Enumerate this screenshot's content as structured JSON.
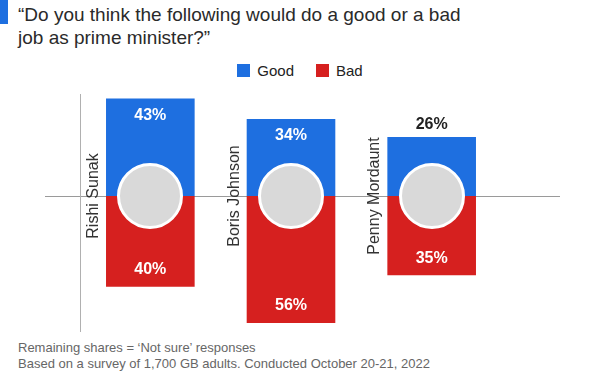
{
  "chart_data": {
    "type": "bar",
    "title": "“Do you think the following would do a good or a bad job as prime minister?”",
    "categories": [
      "Rishi Sunak",
      "Boris Johnson",
      "Penny Mordaunt"
    ],
    "series": [
      {
        "name": "Good",
        "color": "#1e6fe0",
        "values": [
          43,
          34,
          26
        ],
        "value_labels": [
          "43%",
          "34%",
          "26%"
        ]
      },
      {
        "name": "Bad",
        "color": "#d6201f",
        "values": [
          40,
          56,
          35
        ],
        "value_labels": [
          "40%",
          "56%",
          "35%"
        ],
        "axis": "y2"
      }
    ],
    "ylim": [
      0,
      45
    ],
    "y2lim": [
      0,
      60
    ],
    "grid": false,
    "tick_labels": false,
    "data_labels": true,
    "legend": "top",
    "notes": [
      "Remaining shares = ‘Not sure’ responses",
      "Based on a survey of 1,700 GB adults. Conducted October 20-21, 2022"
    ]
  }
}
